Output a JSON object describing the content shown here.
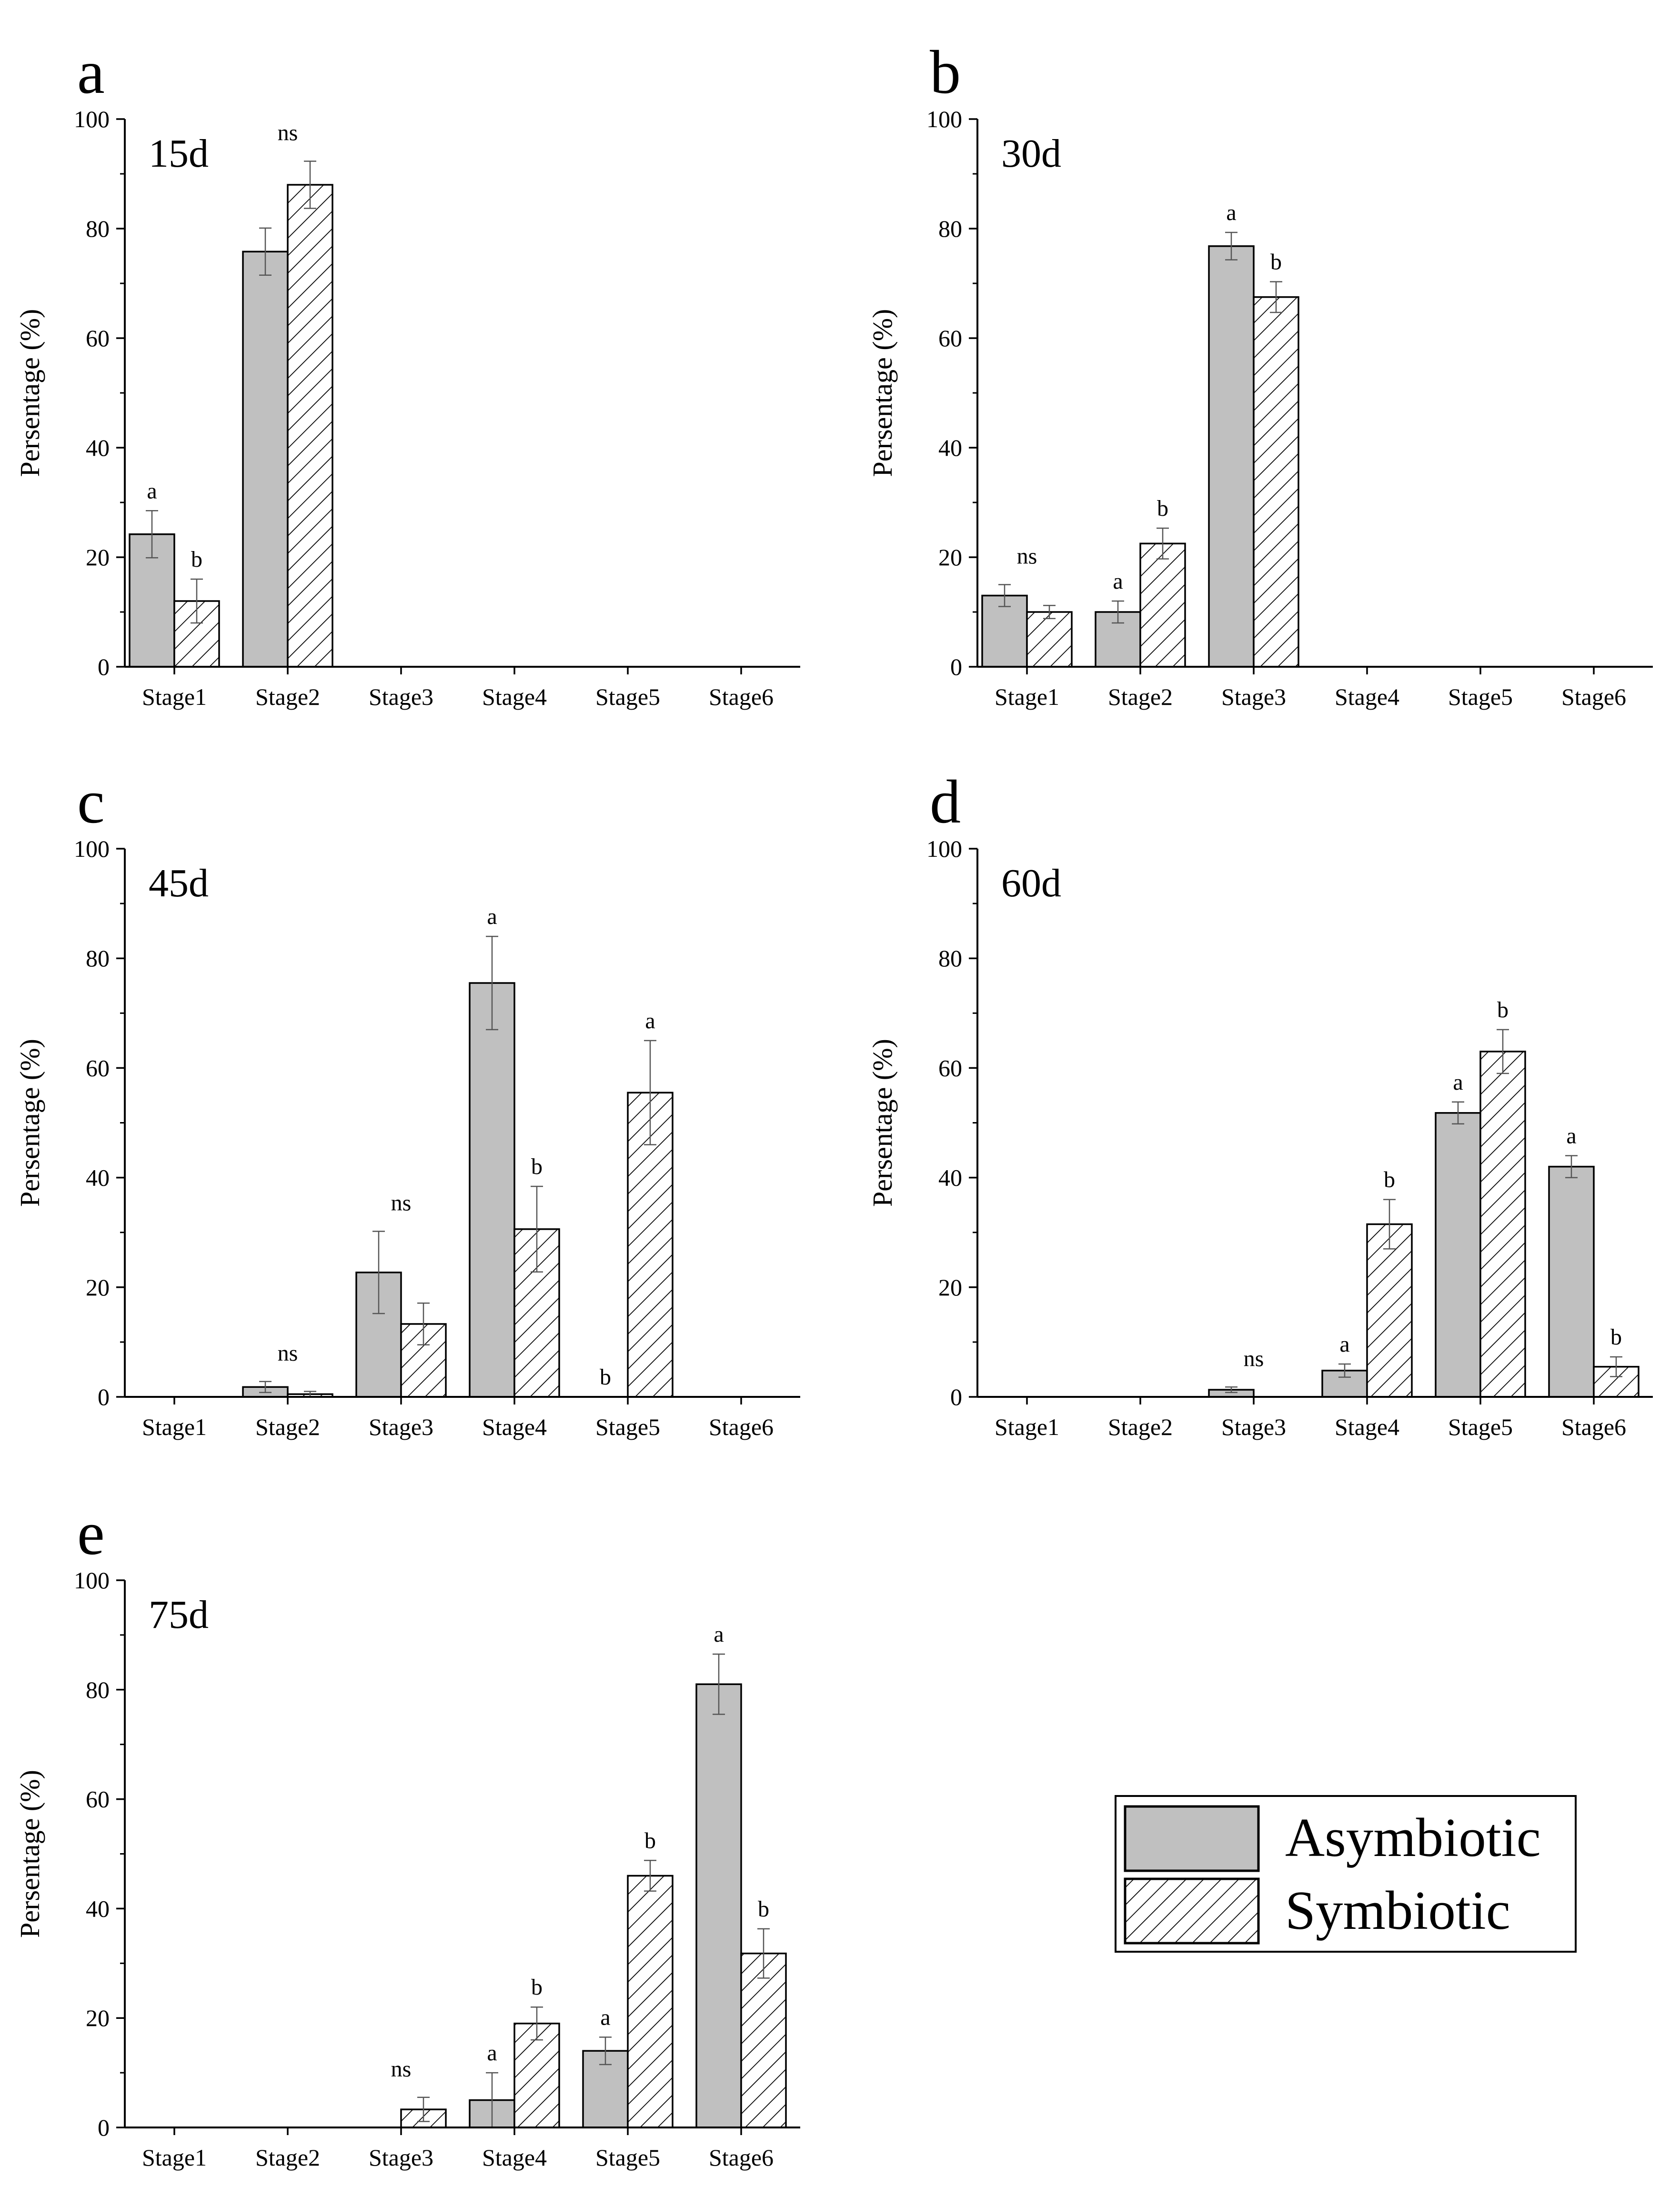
{
  "chart_data": [
    {
      "type": "bar",
      "panel": "a",
      "title": "15d",
      "xlabel": "",
      "ylabel": "Persentage (%)",
      "ylim": [
        0,
        100
      ],
      "yticks": [
        0,
        20,
        40,
        60,
        80,
        100
      ],
      "categories": [
        "Stage1",
        "Stage2",
        "Stage3",
        "Stage4",
        "Stage5",
        "Stage6"
      ],
      "series": [
        {
          "name": "Asymbiotic",
          "values": [
            24.2,
            75.8,
            0,
            0,
            0,
            0
          ],
          "errors": [
            4.3,
            4.3,
            0,
            0,
            0,
            0
          ]
        },
        {
          "name": "Symbiotic",
          "values": [
            12.0,
            88.0,
            0,
            0,
            0,
            0
          ],
          "errors": [
            4.0,
            4.3,
            0,
            0,
            0,
            0
          ]
        }
      ],
      "significance": [
        {
          "category": 0,
          "series": 0,
          "label": "a"
        },
        {
          "category": 0,
          "series": 1,
          "label": "b"
        },
        {
          "category": 1,
          "series": "group",
          "label": "ns"
        }
      ]
    },
    {
      "type": "bar",
      "panel": "b",
      "title": "30d",
      "xlabel": "",
      "ylabel": "Persentage (%)",
      "ylim": [
        0,
        100
      ],
      "yticks": [
        0,
        20,
        40,
        60,
        80,
        100
      ],
      "categories": [
        "Stage1",
        "Stage2",
        "Stage3",
        "Stage4",
        "Stage5",
        "Stage6"
      ],
      "series": [
        {
          "name": "Asymbiotic",
          "values": [
            13.0,
            10.0,
            76.8,
            0,
            0,
            0
          ],
          "errors": [
            2.0,
            2.0,
            2.5,
            0,
            0,
            0
          ]
        },
        {
          "name": "Symbiotic",
          "values": [
            10.0,
            22.5,
            67.5,
            0,
            0,
            0
          ],
          "errors": [
            1.2,
            2.8,
            2.8,
            0,
            0,
            0
          ]
        }
      ],
      "significance": [
        {
          "category": 0,
          "series": "group",
          "label": "ns"
        },
        {
          "category": 1,
          "series": 0,
          "label": "a"
        },
        {
          "category": 1,
          "series": 1,
          "label": "b"
        },
        {
          "category": 2,
          "series": 0,
          "label": "a"
        },
        {
          "category": 2,
          "series": 1,
          "label": "b"
        }
      ]
    },
    {
      "type": "bar",
      "panel": "c",
      "title": "45d",
      "xlabel": "",
      "ylabel": "Persentage (%)",
      "ylim": [
        0,
        100
      ],
      "yticks": [
        0,
        20,
        40,
        60,
        80,
        100
      ],
      "categories": [
        "Stage1",
        "Stage2",
        "Stage3",
        "Stage4",
        "Stage5",
        "Stage6"
      ],
      "series": [
        {
          "name": "Asymbiotic",
          "values": [
            0,
            1.8,
            22.7,
            75.5,
            0,
            0
          ],
          "errors": [
            0,
            1.0,
            7.5,
            8.5,
            0,
            0
          ]
        },
        {
          "name": "Symbiotic",
          "values": [
            0,
            0.5,
            13.3,
            30.6,
            55.5,
            0
          ],
          "errors": [
            0,
            0.5,
            3.8,
            7.8,
            9.5,
            0
          ]
        }
      ],
      "significance": [
        {
          "category": 1,
          "series": "group",
          "label": "ns"
        },
        {
          "category": 2,
          "series": "group",
          "label": "ns"
        },
        {
          "category": 3,
          "series": 0,
          "label": "a"
        },
        {
          "category": 3,
          "series": 1,
          "label": "b"
        },
        {
          "category": 4,
          "series": 0,
          "label": "b"
        },
        {
          "category": 4,
          "series": 1,
          "label": "a"
        }
      ]
    },
    {
      "type": "bar",
      "panel": "d",
      "title": "60d",
      "xlabel": "",
      "ylabel": "Persentage (%)",
      "ylim": [
        0,
        100
      ],
      "yticks": [
        0,
        20,
        40,
        60,
        80,
        100
      ],
      "categories": [
        "Stage1",
        "Stage2",
        "Stage3",
        "Stage4",
        "Stage5",
        "Stage6"
      ],
      "series": [
        {
          "name": "Asymbiotic",
          "values": [
            0,
            0,
            1.3,
            4.8,
            51.8,
            42.0
          ],
          "errors": [
            0,
            0,
            0.5,
            1.2,
            2.0,
            2.0
          ]
        },
        {
          "name": "Symbiotic",
          "values": [
            0,
            0,
            0,
            31.5,
            63.0,
            5.5
          ],
          "errors": [
            0,
            0,
            0,
            4.5,
            4.0,
            1.8
          ]
        }
      ],
      "significance": [
        {
          "category": 2,
          "series": "group",
          "label": "ns"
        },
        {
          "category": 3,
          "series": 0,
          "label": "a"
        },
        {
          "category": 3,
          "series": 1,
          "label": "b"
        },
        {
          "category": 4,
          "series": 0,
          "label": "a"
        },
        {
          "category": 4,
          "series": 1,
          "label": "b"
        },
        {
          "category": 5,
          "series": 0,
          "label": "a"
        },
        {
          "category": 5,
          "series": 1,
          "label": "b"
        }
      ]
    },
    {
      "type": "bar",
      "panel": "e",
      "title": "75d",
      "xlabel": "",
      "ylabel": "Persentage (%)",
      "ylim": [
        0,
        100
      ],
      "yticks": [
        0,
        20,
        40,
        60,
        80,
        100
      ],
      "categories": [
        "Stage1",
        "Stage2",
        "Stage3",
        "Stage4",
        "Stage5",
        "Stage6"
      ],
      "series": [
        {
          "name": "Asymbiotic",
          "values": [
            0,
            0,
            0,
            5.0,
            14.0,
            81.0
          ],
          "errors": [
            0,
            0,
            0,
            5.0,
            2.5,
            5.5
          ]
        },
        {
          "name": "Symbiotic",
          "values": [
            0,
            0,
            3.3,
            19.0,
            46.0,
            31.8
          ],
          "errors": [
            0,
            0,
            2.2,
            3.0,
            2.8,
            4.5
          ]
        }
      ],
      "significance": [
        {
          "category": 2,
          "series": "group",
          "label": "ns"
        },
        {
          "category": 3,
          "series": 0,
          "label": "a"
        },
        {
          "category": 3,
          "series": 1,
          "label": "b"
        },
        {
          "category": 4,
          "series": 0,
          "label": "a"
        },
        {
          "category": 4,
          "series": 1,
          "label": "b"
        },
        {
          "category": 5,
          "series": 0,
          "label": "a"
        },
        {
          "category": 5,
          "series": 1,
          "label": "b"
        }
      ]
    }
  ],
  "legend": {
    "items": [
      {
        "label": "Asymbiotic",
        "fill": "solid"
      },
      {
        "label": "Symbiotic",
        "fill": "hatched"
      }
    ]
  },
  "colors": {
    "asymbiotic_fill": "#c0c0c0",
    "symbiotic_fill": "#ffffff",
    "stroke": "#000000",
    "errorbar": "#555555"
  }
}
